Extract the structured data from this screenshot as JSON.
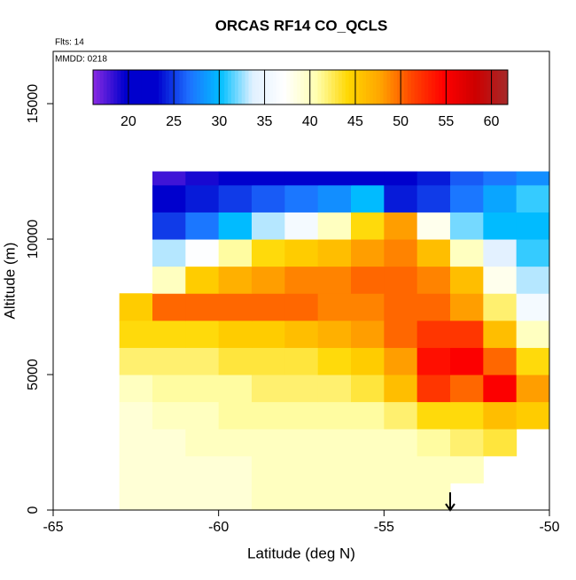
{
  "chart_data": {
    "type": "heatmap",
    "title": "ORCAS RF14 CO_QCLS",
    "annotations": [
      "Flts: 14",
      "MMDD: 0218"
    ],
    "x_label": "Latitude (deg N)",
    "y_label": "Altitude (m)",
    "xlim": [
      -65,
      -50
    ],
    "xticks": [
      -65,
      -60,
      -55,
      -50
    ],
    "ylim": [
      0,
      16930
    ],
    "yticks": [
      0,
      5000,
      10000,
      15000
    ],
    "x_bins": [
      -63,
      -62,
      -61,
      -60,
      -59,
      -58,
      -57,
      -56,
      -55,
      -54,
      -53,
      -52,
      -51,
      -50
    ],
    "y_bins": [
      0,
      1000,
      2000,
      3000,
      4000,
      5000,
      6000,
      7000,
      8000,
      9000,
      10000,
      11000,
      12000,
      12500
    ],
    "z": [
      [
        39,
        39,
        39,
        39,
        40,
        40,
        40,
        40,
        40,
        40,
        null,
        null,
        null
      ],
      [
        39,
        39,
        39,
        39,
        40,
        40,
        40,
        40,
        40,
        40,
        40,
        null,
        null
      ],
      [
        39,
        39,
        40,
        40,
        40,
        40,
        40,
        40,
        40,
        41,
        42,
        43,
        null
      ],
      [
        39,
        40,
        40,
        41,
        41,
        41,
        41,
        41,
        42,
        44,
        44,
        46,
        45
      ],
      [
        40,
        41,
        41,
        41,
        42,
        42,
        42,
        43,
        46,
        52,
        50,
        55,
        48
      ],
      [
        42,
        42,
        42,
        43,
        43,
        43,
        44,
        45,
        48,
        54,
        55,
        50,
        44
      ],
      [
        44,
        44,
        44,
        45,
        45,
        46,
        47,
        48,
        50,
        52,
        52,
        46,
        40
      ],
      [
        45,
        50,
        50,
        50,
        50,
        50,
        49,
        49,
        50,
        50,
        48,
        42,
        36
      ],
      [
        null,
        40,
        45,
        47,
        48,
        49,
        49,
        50,
        50,
        49,
        46,
        38,
        33
      ],
      [
        null,
        33,
        37,
        41,
        44,
        45,
        46,
        48,
        49,
        46,
        40,
        34,
        31
      ],
      [
        null,
        25,
        27,
        30,
        33,
        36,
        40,
        44,
        48,
        38,
        32,
        30,
        30
      ],
      [
        null,
        23,
        24,
        25,
        26,
        27,
        28,
        30,
        24,
        25,
        27,
        29,
        31
      ],
      [
        null,
        18,
        19,
        20,
        20,
        21,
        22,
        22,
        23,
        24,
        26,
        27,
        28
      ]
    ],
    "colorbar": {
      "lim": [
        16.1,
        61.8
      ],
      "ticks": [
        20,
        25,
        30,
        35,
        40,
        45,
        50,
        55,
        60
      ],
      "colors": [
        "#8a2be2",
        "#0000cd",
        "#0000cd",
        "#1e6fff",
        "#00bfff",
        "#e0f0ff",
        "#ffffff",
        "#ffffb0",
        "#ffd700",
        "#ffa500",
        "#ff4500",
        "#ff0000",
        "#cd0000",
        "#a52a2a"
      ]
    },
    "marker_lat": -53
  }
}
